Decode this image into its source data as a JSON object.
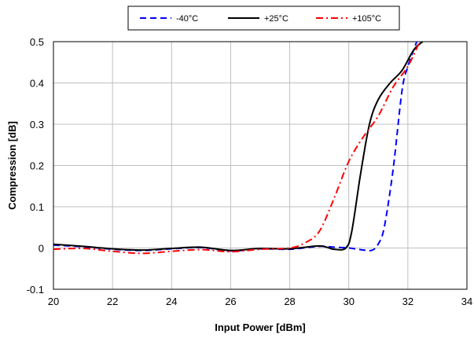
{
  "chart_data": {
    "type": "line",
    "xlabel": "Input Power [dBm]",
    "ylabel": "Compression [dB]",
    "xlim": [
      20,
      34
    ],
    "ylim": [
      -0.1,
      0.5
    ],
    "x_ticks": [
      20,
      22,
      24,
      26,
      28,
      30,
      32,
      34
    ],
    "y_ticks": [
      -0.1,
      0,
      0.1,
      0.2,
      0.3,
      0.4,
      0.5
    ],
    "x_tick_labels": [
      "20",
      "22",
      "24",
      "26",
      "28",
      "30",
      "32",
      "34"
    ],
    "y_tick_labels": [
      "-0.1",
      "0",
      "0.1",
      "0.2",
      "0.3",
      "0.4",
      "0.5"
    ],
    "grid": true,
    "legend_position": "top-center",
    "series": [
      {
        "name": "-40°C",
        "color": "#0000ff",
        "dash": "dashed",
        "points": [
          [
            20,
            0.007
          ],
          [
            21,
            0.003
          ],
          [
            22,
            -0.003
          ],
          [
            23,
            -0.006
          ],
          [
            24,
            -0.002
          ],
          [
            25,
            0.001
          ],
          [
            26,
            -0.007
          ],
          [
            27,
            -0.002
          ],
          [
            28,
            -0.003
          ],
          [
            29,
            0.004
          ],
          [
            29.5,
            0.002
          ],
          [
            30,
            0.0
          ],
          [
            30.5,
            -0.005
          ],
          [
            30.8,
            -0.005
          ],
          [
            31.0,
            0.01
          ],
          [
            31.2,
            0.05
          ],
          [
            31.5,
            0.19
          ],
          [
            31.8,
            0.38
          ],
          [
            32.0,
            0.44
          ],
          [
            32.3,
            0.5
          ]
        ]
      },
      {
        "name": "+25°C",
        "color": "#000000",
        "dash": "solid",
        "points": [
          [
            20,
            0.009
          ],
          [
            21,
            0.004
          ],
          [
            22,
            -0.002
          ],
          [
            23,
            -0.005
          ],
          [
            24,
            -0.001
          ],
          [
            25,
            0.002
          ],
          [
            26,
            -0.006
          ],
          [
            27,
            -0.001
          ],
          [
            28,
            -0.002
          ],
          [
            29,
            0.005
          ],
          [
            29.5,
            -0.003
          ],
          [
            29.9,
            0.0
          ],
          [
            30.1,
            0.04
          ],
          [
            30.4,
            0.18
          ],
          [
            30.7,
            0.3
          ],
          [
            31.0,
            0.36
          ],
          [
            31.4,
            0.4
          ],
          [
            31.8,
            0.43
          ],
          [
            32.2,
            0.48
          ],
          [
            32.5,
            0.5
          ]
        ]
      },
      {
        "name": "+105°C",
        "color": "#ff0000",
        "dash": "dashdot",
        "points": [
          [
            20,
            -0.003
          ],
          [
            21,
            -0.001
          ],
          [
            22,
            -0.008
          ],
          [
            23,
            -0.013
          ],
          [
            24,
            -0.008
          ],
          [
            25,
            -0.004
          ],
          [
            26,
            -0.009
          ],
          [
            27,
            -0.003
          ],
          [
            28,
            0.0
          ],
          [
            28.5,
            0.012
          ],
          [
            29,
            0.04
          ],
          [
            29.5,
            0.12
          ],
          [
            30,
            0.21
          ],
          [
            30.5,
            0.27
          ],
          [
            31,
            0.32
          ],
          [
            31.5,
            0.39
          ],
          [
            32,
            0.44
          ],
          [
            32.4,
            0.5
          ]
        ]
      }
    ]
  }
}
